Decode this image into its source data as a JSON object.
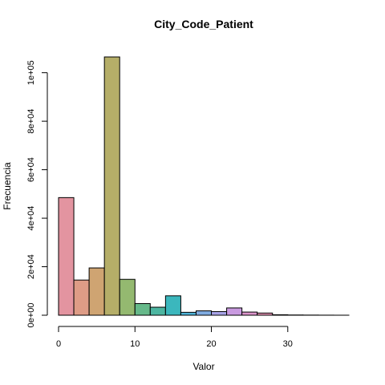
{
  "chart_data": {
    "type": "bar",
    "title": "City_Code_Patient",
    "xlabel": "Valor",
    "ylabel": "Frecuencia",
    "bins": [
      {
        "start": 0,
        "end": 2,
        "value": 48500,
        "color": "#E394A0"
      },
      {
        "start": 2,
        "end": 4,
        "value": 14500,
        "color": "#DE9C86"
      },
      {
        "start": 4,
        "end": 6,
        "value": 19500,
        "color": "#CFA472"
      },
      {
        "start": 6,
        "end": 8,
        "value": 106500,
        "color": "#B5AE68"
      },
      {
        "start": 8,
        "end": 10,
        "value": 14800,
        "color": "#94B970"
      },
      {
        "start": 10,
        "end": 12,
        "value": 4800,
        "color": "#66B98A"
      },
      {
        "start": 12,
        "end": 14,
        "value": 3300,
        "color": "#4DB6A1"
      },
      {
        "start": 14,
        "end": 16,
        "value": 8000,
        "color": "#3BB7BD"
      },
      {
        "start": 16,
        "end": 18,
        "value": 1200,
        "color": "#4DB2D6"
      },
      {
        "start": 18,
        "end": 20,
        "value": 1800,
        "color": "#7FABE0"
      },
      {
        "start": 20,
        "end": 22,
        "value": 1500,
        "color": "#A7A3E6"
      },
      {
        "start": 22,
        "end": 24,
        "value": 3000,
        "color": "#C99AE0"
      },
      {
        "start": 24,
        "end": 26,
        "value": 1300,
        "color": "#DC94CA"
      },
      {
        "start": 26,
        "end": 28,
        "value": 900,
        "color": "#E592B3"
      },
      {
        "start": 28,
        "end": 30,
        "value": 200,
        "color": "#E394A0"
      },
      {
        "start": 30,
        "end": 32,
        "value": 100,
        "color": "#DE9C86"
      },
      {
        "start": 32,
        "end": 34,
        "value": 60,
        "color": "#CFA472"
      },
      {
        "start": 34,
        "end": 36,
        "value": 30,
        "color": "#B5AE68"
      },
      {
        "start": 36,
        "end": 38,
        "value": 10,
        "color": "#94B970"
      }
    ],
    "xlim": [
      0,
      38
    ],
    "ylim": [
      0,
      106500
    ],
    "x_ticks": [
      0,
      10,
      20,
      30
    ],
    "x_tick_labels": [
      "0",
      "10",
      "20",
      "30"
    ],
    "y_ticks": [
      0,
      20000,
      40000,
      60000,
      80000,
      100000
    ],
    "y_tick_labels": [
      "0e+00",
      "2e+04",
      "4e+04",
      "6e+04",
      "8e+04",
      "1e+05"
    ],
    "grid": false,
    "legend": "none"
  }
}
